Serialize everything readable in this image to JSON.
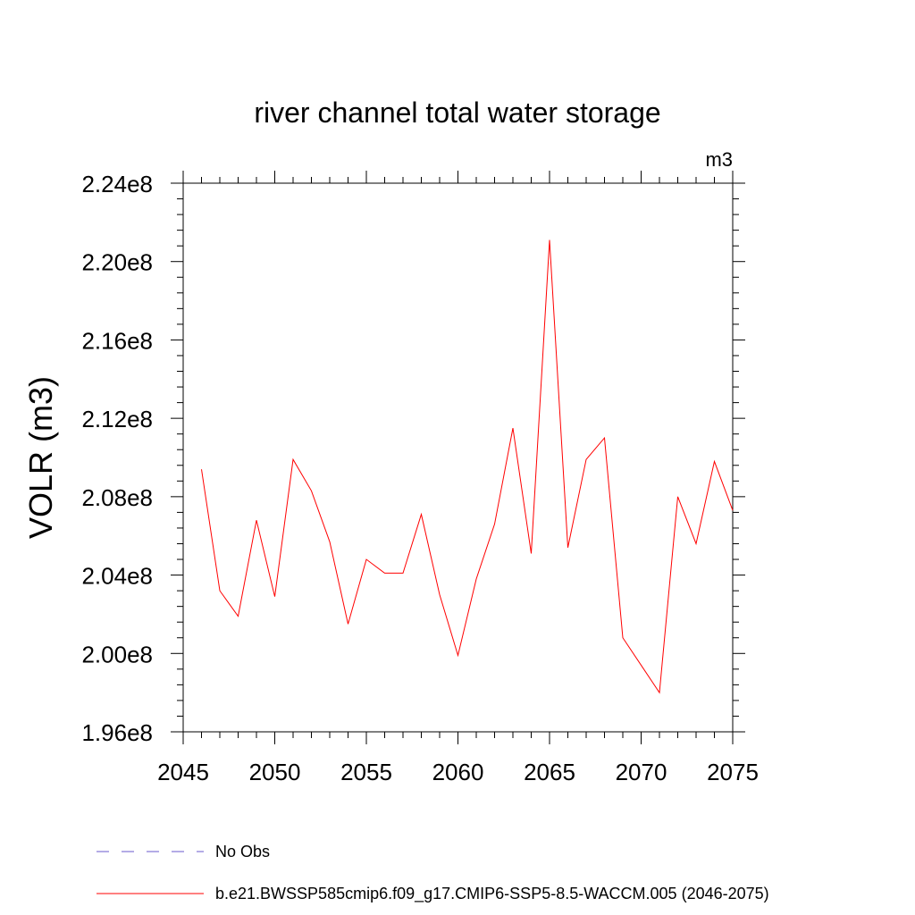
{
  "chart_data": {
    "type": "line",
    "title": "river channel total water storage",
    "units_label": "m3",
    "xlabel": "",
    "ylabel": "VOLR  (m3)",
    "xlim": [
      2045,
      2075
    ],
    "ylim": [
      196000000,
      224000000
    ],
    "x_ticks": [
      2045,
      2050,
      2055,
      2060,
      2065,
      2070,
      2075
    ],
    "x_tick_labels": [
      "2045",
      "2050",
      "2055",
      "2060",
      "2065",
      "2070",
      "2075"
    ],
    "y_ticks": [
      196000000,
      200000000,
      204000000,
      208000000,
      212000000,
      216000000,
      220000000,
      224000000
    ],
    "y_tick_labels": [
      "1.96e8",
      "2.00e8",
      "2.04e8",
      "2.08e8",
      "2.12e8",
      "2.16e8",
      "2.20e8",
      "2.24e8"
    ],
    "grid": false,
    "legend_placement": "bottom",
    "legend": [
      {
        "label": "No Obs",
        "color": "#6a5acd",
        "dash": "dashed"
      },
      {
        "label": "b.e21.BWSSP585cmip6.f09_g17.CMIP6-SSP5-8.5-WACCM.005 (2046-2075)",
        "color": "#ff0000",
        "dash": "solid"
      }
    ],
    "series": [
      {
        "name": "b.e21.BWSSP585cmip6.f09_g17.CMIP6-SSP5-8.5-WACCM.005 (2046-2075)",
        "color": "#ff0000",
        "x": [
          2046,
          2047,
          2048,
          2049,
          2050,
          2051,
          2052,
          2053,
          2054,
          2055,
          2056,
          2057,
          2058,
          2059,
          2060,
          2061,
          2062,
          2063,
          2064,
          2065,
          2066,
          2067,
          2068,
          2069,
          2070,
          2071,
          2072,
          2073,
          2074,
          2075
        ],
        "values": [
          209400000,
          203200000,
          201900000,
          206800000,
          202900000,
          209900000,
          208300000,
          205700000,
          201500000,
          204800000,
          204100000,
          204100000,
          207100000,
          203000000,
          199900000,
          203800000,
          206600000,
          211500000,
          205100000,
          221100000,
          205400000,
          209900000,
          211000000,
          200800000,
          199400000,
          198000000,
          208000000,
          205600000,
          209800000,
          207300000
        ]
      }
    ]
  }
}
